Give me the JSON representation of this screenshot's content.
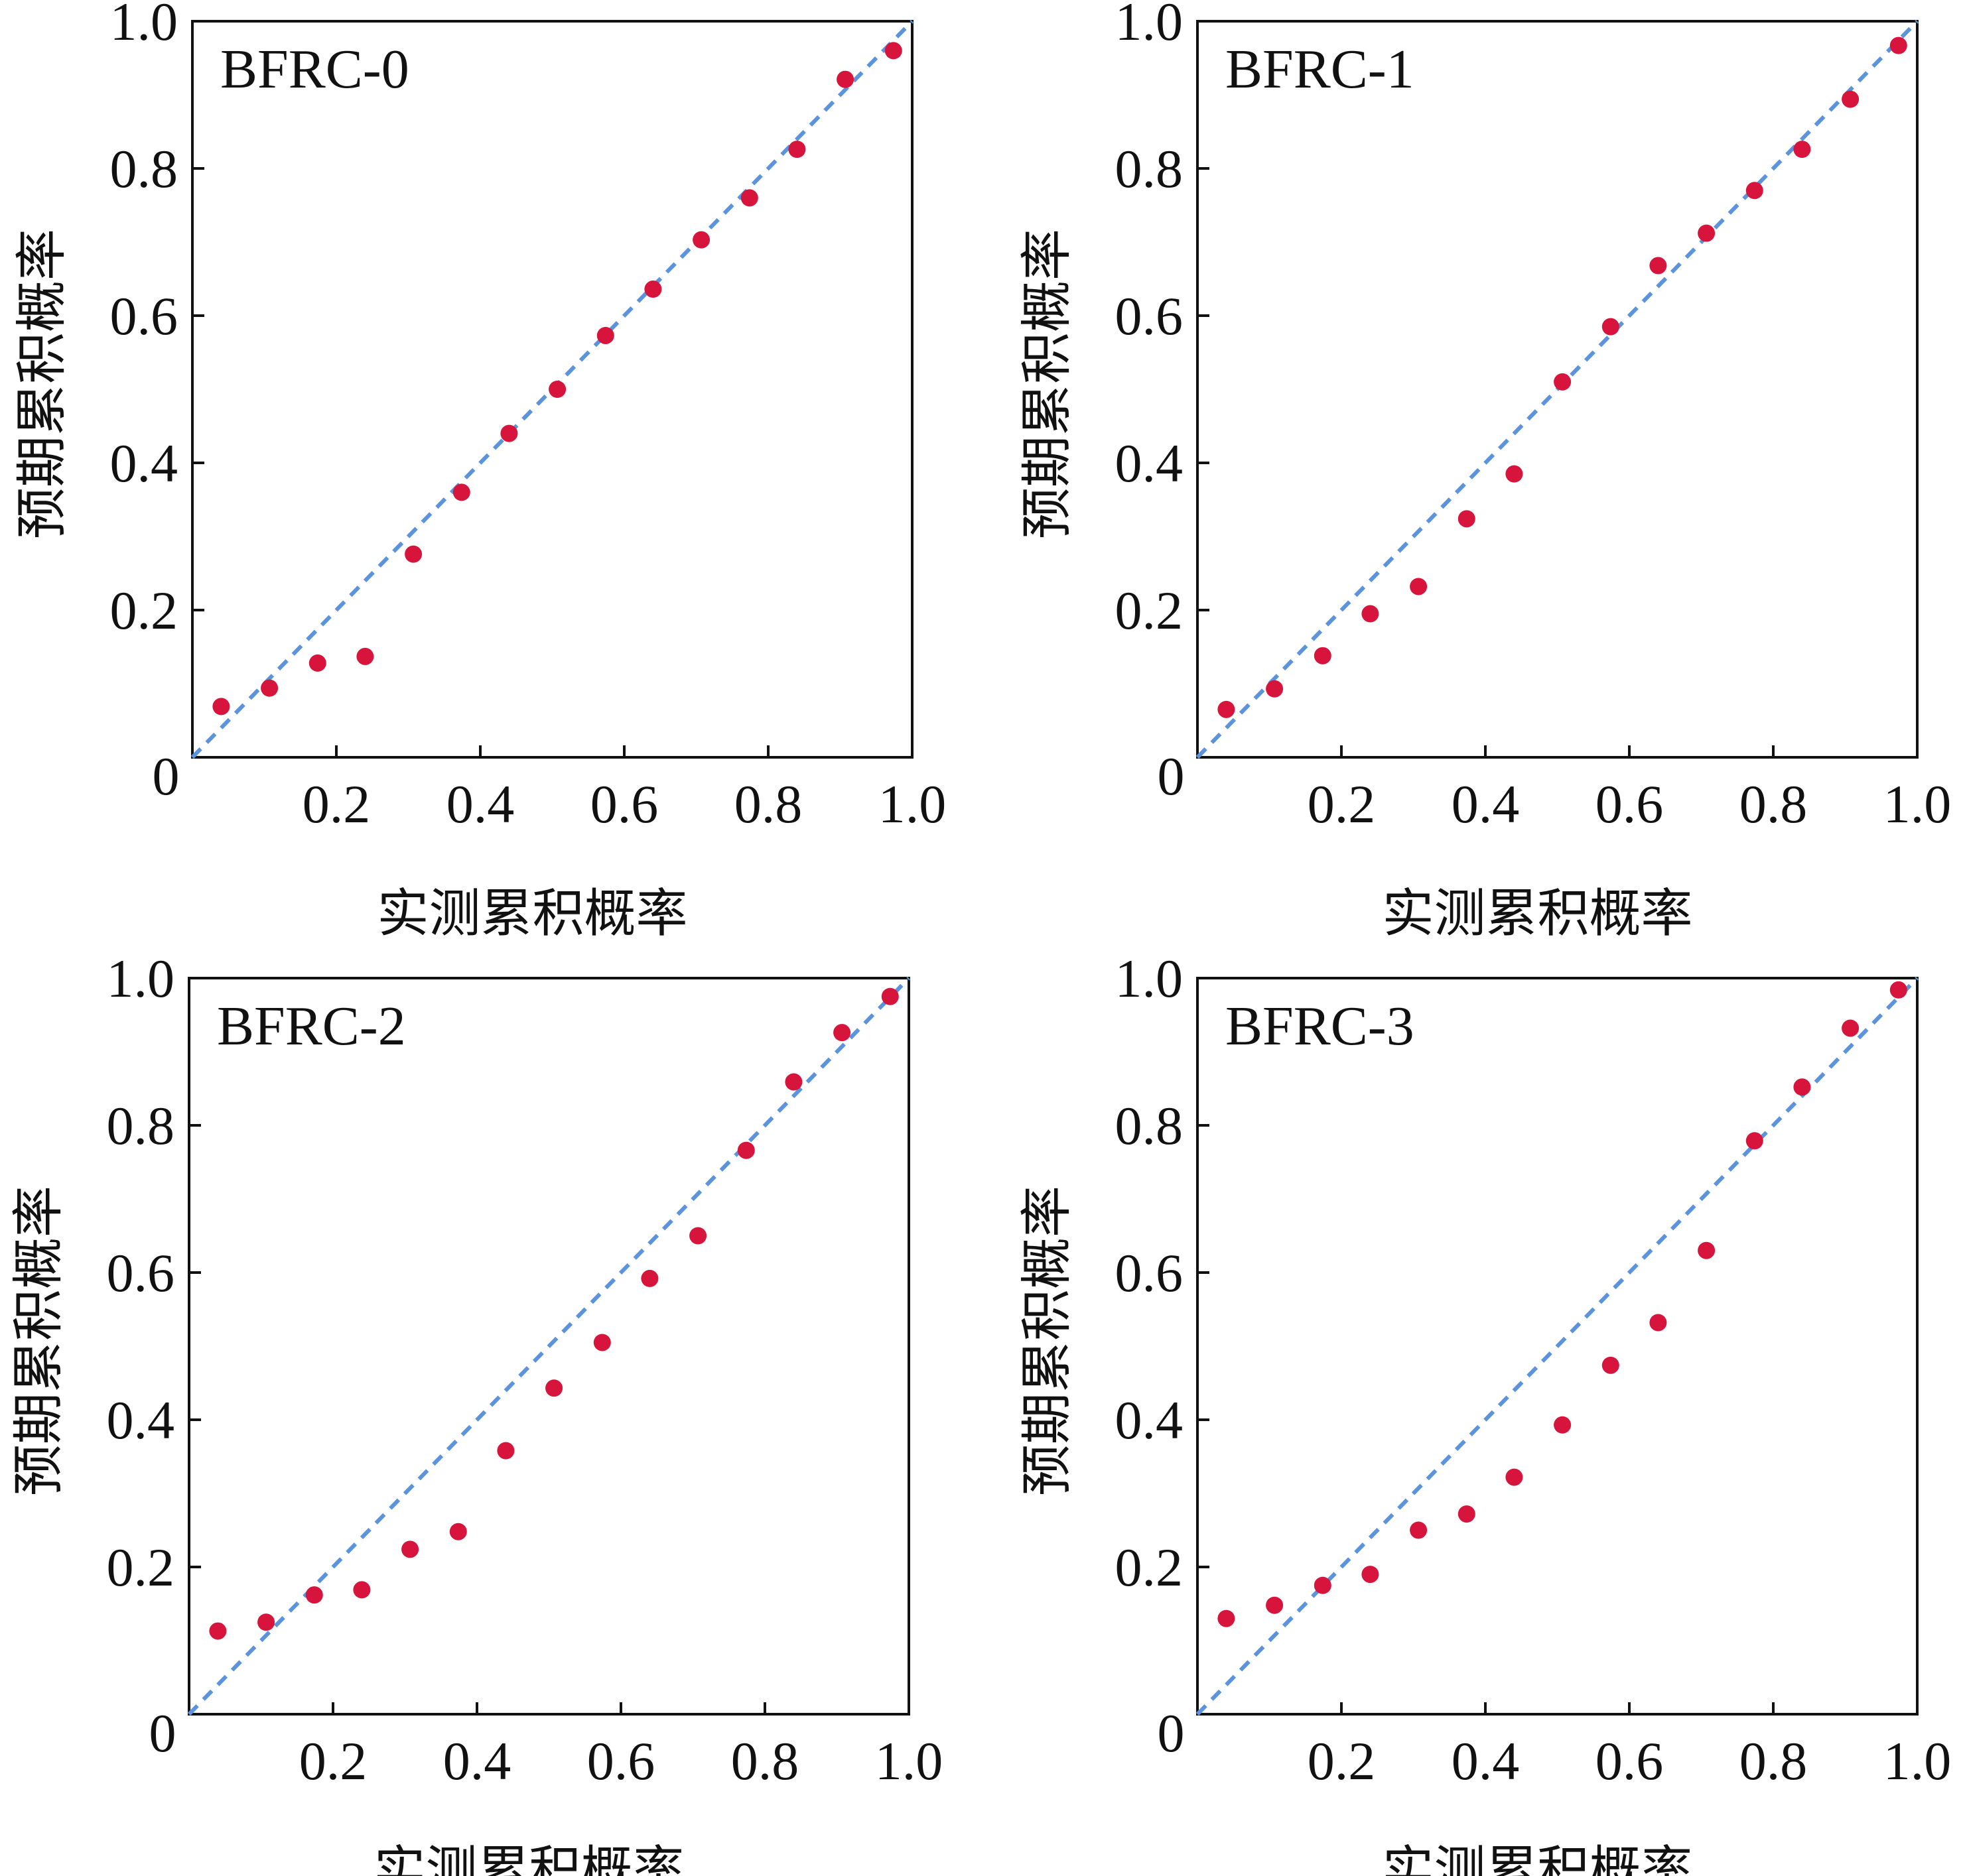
{
  "colors": {
    "points": "#d6143c",
    "reference_line": "#5b93dc",
    "axes": "#111111"
  },
  "chart_data": [
    {
      "type": "scatter",
      "title": "BFRC-0",
      "xlabel": "实测累积概率",
      "ylabel": "预期累积概率",
      "xlim": [
        0,
        1
      ],
      "ylim": [
        0,
        1
      ],
      "xticks": [
        "0.2",
        "0.4",
        "0.6",
        "0.8",
        "1.0"
      ],
      "yticks": [
        "0.2",
        "0.4",
        "0.6",
        "0.8",
        "1.0"
      ],
      "origin_label": "0",
      "reference_line": {
        "style": "dashed",
        "from": [
          0,
          0
        ],
        "to": [
          1,
          1
        ]
      },
      "x": [
        0.04,
        0.107,
        0.174,
        0.24,
        0.307,
        0.374,
        0.44,
        0.507,
        0.574,
        0.64,
        0.707,
        0.774,
        0.84,
        0.907,
        0.974
      ],
      "y": [
        0.069,
        0.094,
        0.128,
        0.137,
        0.276,
        0.36,
        0.44,
        0.5,
        0.573,
        0.636,
        0.703,
        0.76,
        0.826,
        0.921,
        0.96
      ]
    },
    {
      "type": "scatter",
      "title": "BFRC-1",
      "xlabel": "实测累积概率",
      "ylabel": "预期累积概率",
      "xlim": [
        0,
        1
      ],
      "ylim": [
        0,
        1
      ],
      "xticks": [
        "0.2",
        "0.4",
        "0.6",
        "0.8",
        "1.0"
      ],
      "yticks": [
        "0.2",
        "0.4",
        "0.6",
        "0.8",
        "1.0"
      ],
      "origin_label": "0",
      "reference_line": {
        "style": "dashed",
        "from": [
          0,
          0
        ],
        "to": [
          1,
          1
        ]
      },
      "x": [
        0.04,
        0.107,
        0.174,
        0.24,
        0.307,
        0.374,
        0.44,
        0.507,
        0.574,
        0.64,
        0.707,
        0.774,
        0.84,
        0.907,
        0.974
      ],
      "y": [
        0.065,
        0.093,
        0.138,
        0.195,
        0.232,
        0.324,
        0.385,
        0.51,
        0.585,
        0.668,
        0.712,
        0.77,
        0.826,
        0.894,
        0.967
      ]
    },
    {
      "type": "scatter",
      "title": "BFRC-2",
      "xlabel": "实测累积概率",
      "ylabel": "预期累积概率",
      "xlim": [
        0,
        1
      ],
      "ylim": [
        0,
        1
      ],
      "xticks": [
        "0.2",
        "0.4",
        "0.6",
        "0.8",
        "1.0"
      ],
      "yticks": [
        "0.2",
        "0.4",
        "0.6",
        "0.8",
        "1.0"
      ],
      "origin_label": "0",
      "reference_line": {
        "style": "dashed",
        "from": [
          0,
          0
        ],
        "to": [
          1,
          1
        ]
      },
      "x": [
        0.04,
        0.107,
        0.174,
        0.24,
        0.307,
        0.374,
        0.44,
        0.507,
        0.574,
        0.64,
        0.707,
        0.774,
        0.84,
        0.907,
        0.974
      ],
      "y": [
        0.113,
        0.125,
        0.162,
        0.169,
        0.224,
        0.248,
        0.358,
        0.443,
        0.505,
        0.592,
        0.65,
        0.766,
        0.859,
        0.926,
        0.975
      ]
    },
    {
      "type": "scatter",
      "title": "BFRC-3",
      "xlabel": "实测累积概率",
      "ylabel": "预期累积概率",
      "xlim": [
        0,
        1
      ],
      "ylim": [
        0,
        1
      ],
      "xticks": [
        "0.2",
        "0.4",
        "0.6",
        "0.8",
        "1.0"
      ],
      "yticks": [
        "0.2",
        "0.4",
        "0.6",
        "0.8",
        "1.0"
      ],
      "origin_label": "0",
      "reference_line": {
        "style": "dashed",
        "from": [
          0,
          0
        ],
        "to": [
          1,
          1
        ]
      },
      "x": [
        0.04,
        0.107,
        0.174,
        0.24,
        0.307,
        0.374,
        0.44,
        0.507,
        0.574,
        0.64,
        0.707,
        0.774,
        0.84,
        0.907,
        0.974
      ],
      "y": [
        0.13,
        0.148,
        0.175,
        0.19,
        0.25,
        0.272,
        0.322,
        0.393,
        0.474,
        0.532,
        0.63,
        0.779,
        0.852,
        0.932,
        0.984
      ]
    }
  ]
}
